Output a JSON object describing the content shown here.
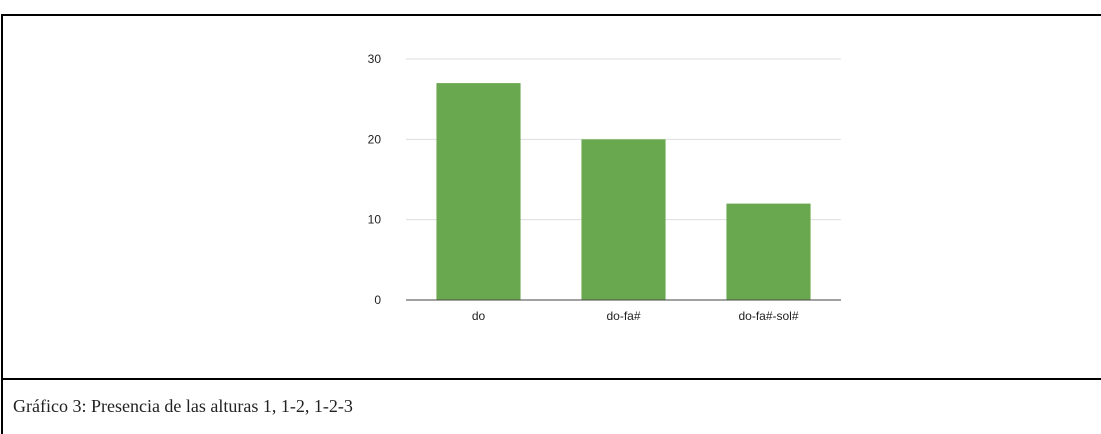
{
  "caption": "Gráfico 3: Presencia de las alturas 1, 1-2, 1-2-3",
  "chart_data": {
    "type": "bar",
    "categories": [
      "do",
      "do-fa#",
      "do-fa#-sol#"
    ],
    "values": [
      27,
      20,
      12
    ],
    "title": "",
    "xlabel": "",
    "ylabel": "",
    "ylim": [
      0,
      30
    ],
    "yticks": [
      0,
      10,
      20,
      30
    ],
    "grid": true,
    "legend": "none",
    "bar_color": "#6aa84f",
    "grid_color": "#dddddd",
    "axis_color": "#444444"
  }
}
